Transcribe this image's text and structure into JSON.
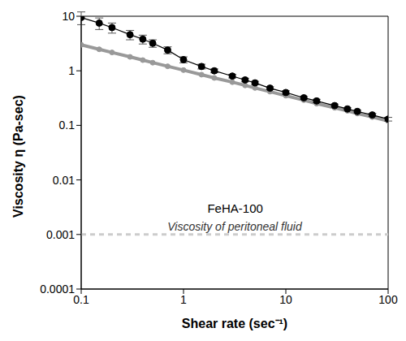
{
  "chart_data": {
    "type": "line",
    "log": true,
    "grid": false,
    "xlabel": "Shear rate (sec⁻¹)",
    "ylabel": "Viscosity η (Pa-sec)",
    "annotations": [
      "FeHA-100"
    ],
    "x": [
      0.1,
      0.15,
      0.2,
      0.3,
      0.4,
      0.5,
      0.7,
      1,
      1.5,
      2,
      3,
      4,
      5,
      7,
      10,
      15,
      20,
      30,
      40,
      50,
      70,
      100
    ],
    "series": [
      {
        "color": "#999999",
        "marker": "circle",
        "line_style": "solid",
        "values": [
          3.0,
          2.48,
          2.17,
          1.8,
          1.57,
          1.41,
          1.21,
          1.03,
          0.85,
          0.74,
          0.62,
          0.54,
          0.485,
          0.415,
          0.35,
          0.29,
          0.25,
          0.21,
          0.185,
          0.165,
          0.142,
          0.12
        ]
      },
      {
        "color": "#000000",
        "marker": "circle",
        "line_style": "solid",
        "values": [
          9.5,
          7.5,
          6.2,
          4.6,
          3.8,
          3.2,
          2.4,
          1.6,
          1.2,
          1.0,
          0.8,
          0.68,
          0.6,
          0.48,
          0.4,
          0.32,
          0.28,
          0.23,
          0.2,
          0.18,
          0.155,
          0.13
        ],
        "errors": [
          2.5,
          1.8,
          1.3,
          0.9,
          0.7,
          0.5,
          0.35,
          0.2,
          0.12,
          0.08,
          0.06,
          0.05,
          0.04,
          0.03,
          0.03,
          0.02,
          0.02,
          0.015,
          0.01,
          0.01,
          0.01,
          0.01
        ]
      }
    ],
    "reference_lines": [
      {
        "y": 0.001,
        "label": "Viscosity of peritoneal fluid",
        "color": "#cccccc",
        "line_style": "dashed"
      }
    ],
    "xlim": [
      0.1,
      100
    ],
    "ylim": [
      0.0001,
      10
    ],
    "xticks": [
      0.1,
      1,
      10,
      100
    ],
    "yticks": [
      0.0001,
      0.001,
      0.01,
      0.1,
      1,
      10
    ]
  }
}
